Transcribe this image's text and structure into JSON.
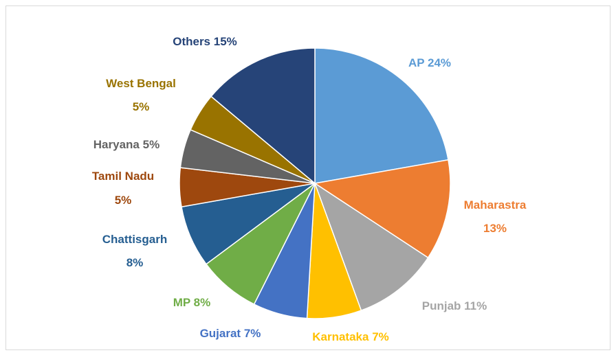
{
  "chart_data": {
    "type": "pie",
    "categories": [
      "AP",
      "Maharastra",
      "Punjab",
      "Karnataka",
      "Gujarat",
      "MP",
      "Chattisgarh",
      "Tamil Nadu",
      "Haryana",
      "West Bengal",
      "Others"
    ],
    "values": [
      24,
      13,
      11,
      7,
      7,
      8,
      8,
      5,
      5,
      5,
      15
    ],
    "value_labels": [
      "24%",
      "13%",
      "11%",
      "7%",
      "7%",
      "8%",
      "8%",
      "5%",
      "5%",
      "5%",
      "15%"
    ],
    "colors": [
      "#5b9bd5",
      "#ed7d31",
      "#a5a5a5",
      "#ffc000",
      "#4472c4",
      "#70ad47",
      "#255e91",
      "#9e480e",
      "#636363",
      "#997300",
      "#264478"
    ]
  }
}
